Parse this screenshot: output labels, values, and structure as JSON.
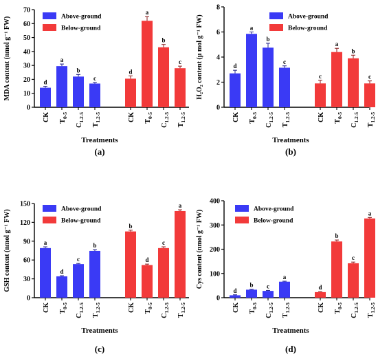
{
  "chart_data": [
    {
      "type": "bar",
      "panel_label": "(a)",
      "xlabel": "Treatments",
      "ylabel": "MDA content (nmol g⁻¹ FW)",
      "ylim": [
        0,
        70
      ],
      "yticks": [
        0,
        10,
        20,
        30,
        40,
        50,
        60,
        70
      ],
      "categories": [
        "CK",
        "T0-5",
        "C1.2-5",
        "T1.2-5"
      ],
      "series": [
        {
          "name": "Above-ground",
          "color": "#3a3af5",
          "values": [
            14,
            29.5,
            22,
            17
          ],
          "errors": [
            1,
            1.5,
            1.5,
            0.8
          ],
          "letters": [
            "d",
            "a",
            "b",
            "c"
          ]
        },
        {
          "name": "Below-ground",
          "color": "#f23a3a",
          "values": [
            20.5,
            62,
            43,
            28
          ],
          "errors": [
            2,
            3,
            2,
            1.5
          ],
          "letters": [
            "d",
            "a",
            "b",
            "c"
          ]
        }
      ],
      "legend": "top-left",
      "grid": false
    },
    {
      "type": "bar",
      "panel_label": "(b)",
      "xlabel": "Treatments",
      "ylabel": "H₂O₂ content (μ mol g⁻¹ FW)",
      "ylim": [
        0,
        8
      ],
      "yticks": [
        0,
        2,
        4,
        6,
        8
      ],
      "categories": [
        "CK",
        "T0-5",
        "C1.2-5",
        "T1.2-5"
      ],
      "series": [
        {
          "name": "Above-ground",
          "color": "#3a3af5",
          "values": [
            2.7,
            5.85,
            4.75,
            3.15
          ],
          "errors": [
            0.25,
            0.15,
            0.35,
            0.15
          ],
          "letters": [
            "d",
            "a",
            "b",
            "c"
          ]
        },
        {
          "name": "Below-ground",
          "color": "#f23a3a",
          "values": [
            1.9,
            4.4,
            3.9,
            1.9
          ],
          "errors": [
            0.25,
            0.3,
            0.25,
            0.2
          ],
          "letters": [
            "c",
            "a",
            "b",
            "c"
          ]
        }
      ],
      "legend": "top-right",
      "grid": false
    },
    {
      "type": "bar",
      "panel_label": "(c)",
      "xlabel": "Treatments",
      "ylabel": "GSH content (nmol g⁻¹ FW)",
      "ylim": [
        0,
        150
      ],
      "yticks": [
        0,
        30,
        60,
        90,
        120,
        150
      ],
      "categories": [
        "CK",
        "T0-5",
        "C1.2-5",
        "T1.2-5"
      ],
      "series": [
        {
          "name": "Above-ground",
          "color": "#3a3af5",
          "values": [
            79,
            34,
            53.5,
            74.5
          ],
          "errors": [
            2,
            1,
            1,
            2
          ],
          "letters": [
            "a",
            "d",
            "c",
            "b"
          ]
        },
        {
          "name": "Below-ground",
          "color": "#f23a3a",
          "values": [
            105.5,
            52,
            79,
            138
          ],
          "errors": [
            2,
            1.5,
            2,
            2
          ],
          "letters": [
            "b",
            "d",
            "c",
            "a"
          ]
        }
      ],
      "legend": "top-left",
      "grid": false
    },
    {
      "type": "bar",
      "panel_label": "(d)",
      "xlabel": "Treatments",
      "ylabel": "Cys content (nmol g⁻¹ FW)",
      "ylim": [
        0,
        400
      ],
      "yticks": [
        0,
        100,
        200,
        300,
        400
      ],
      "categories": [
        "CK",
        "T0-5",
        "C1.2-5",
        "T1.2-5"
      ],
      "series": [
        {
          "name": "Above-ground",
          "color": "#3a3af5",
          "values": [
            10,
            33,
            28,
            66
          ],
          "errors": [
            2,
            2,
            2,
            2
          ],
          "letters": [
            "d",
            "b",
            "c",
            "a"
          ]
        },
        {
          "name": "Below-ground",
          "color": "#f23a3a",
          "values": [
            23,
            232,
            142,
            327
          ],
          "errors": [
            2,
            6,
            5,
            4
          ],
          "letters": [
            "d",
            "b",
            "c",
            "a"
          ]
        }
      ],
      "legend": "top-left",
      "grid": false
    }
  ]
}
